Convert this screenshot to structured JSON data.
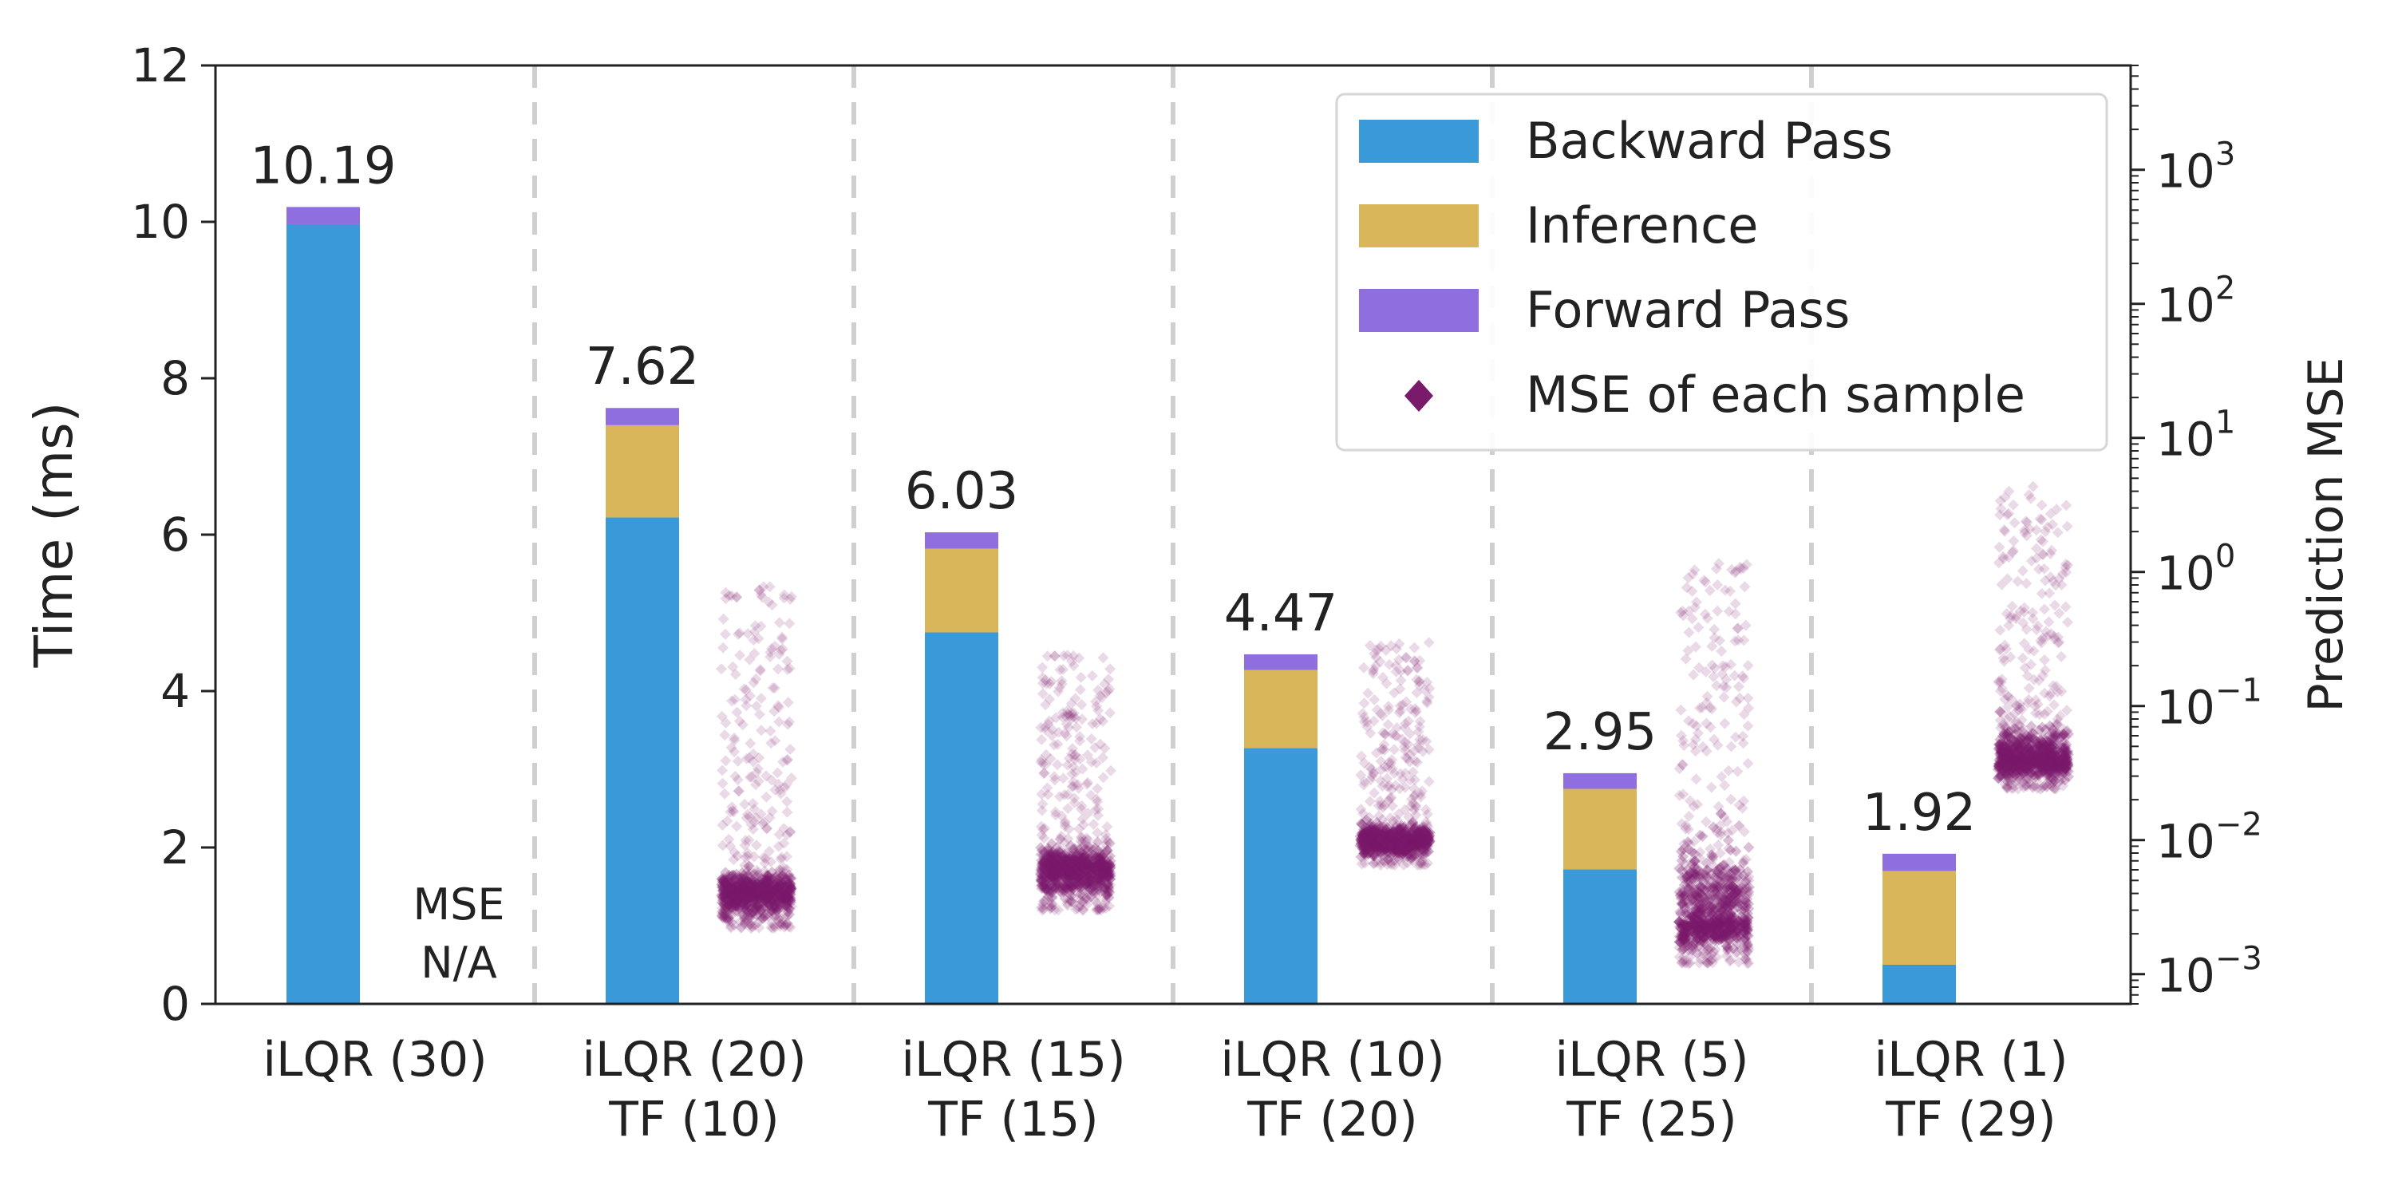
{
  "chart_data": {
    "type": "bar",
    "subtype": "stacked-bar-with-scatter-secondary-axis",
    "categories": [
      [
        "iLQR (30)"
      ],
      [
        "iLQR (20)",
        "TF (10)"
      ],
      [
        "iLQR (15)",
        "TF (15)"
      ],
      [
        "iLQR (10)",
        "TF (20)"
      ],
      [
        "iLQR (5)",
        "TF (25)"
      ],
      [
        "iLQR (1)",
        "TF (29)"
      ]
    ],
    "ylabel": "Time (ms)",
    "ylim": [
      0,
      12
    ],
    "yticks": [
      "0",
      "2",
      "4",
      "6",
      "8",
      "10",
      "12"
    ],
    "y2label": "Prediction MSE",
    "y2scale": "log",
    "y2lim": [
      0.0006,
      6000
    ],
    "y2ticks": [
      {
        "base": "10",
        "exp": "−3",
        "value": 0.001
      },
      {
        "base": "10",
        "exp": "−2",
        "value": 0.01
      },
      {
        "base": "10",
        "exp": "−1",
        "value": 0.1
      },
      {
        "base": "10",
        "exp": "0",
        "value": 1
      },
      {
        "base": "10",
        "exp": "1",
        "value": 10
      },
      {
        "base": "10",
        "exp": "2",
        "value": 100
      },
      {
        "base": "10",
        "exp": "3",
        "value": 1000
      }
    ],
    "series": [
      {
        "name": "Backward Pass",
        "color": "#3a9ad9",
        "values": [
          9.97,
          6.22,
          4.75,
          3.27,
          1.72,
          0.5
        ]
      },
      {
        "name": "Inference",
        "color": "#d9b65a",
        "values": [
          0,
          1.18,
          1.07,
          1.0,
          1.03,
          1.2
        ]
      },
      {
        "name": "Forward Pass",
        "color": "#8f6fe0",
        "values": [
          0.22,
          0.22,
          0.21,
          0.2,
          0.2,
          0.22
        ]
      }
    ],
    "totals": [
      "10.19",
      "7.62",
      "6.03",
      "4.47",
      "2.95",
      "1.92"
    ],
    "scatter": {
      "name": "MSE of each sample",
      "color": "#7a1a6b",
      "marker": "diamond",
      "groups": [
        null,
        {
          "center": 0.004,
          "core_low": 0.0022,
          "core_high": 0.007,
          "min": 0.0015,
          "max": 0.8
        },
        {
          "center": 0.006,
          "core_low": 0.003,
          "core_high": 0.011,
          "min": 0.0018,
          "max": 0.25
        },
        {
          "center": 0.01,
          "core_low": 0.0065,
          "core_high": 0.015,
          "min": 0.006,
          "max": 0.3
        },
        {
          "center": 0.0025,
          "core_low": 0.0012,
          "core_high": 0.02,
          "min": 0.0008,
          "max": 1.2
        },
        {
          "center": 0.04,
          "core_low": 0.024,
          "core_high": 0.09,
          "min": 0.02,
          "max": 4.5
        }
      ]
    },
    "annotation": {
      "line1": "MSE",
      "line2": "N/A"
    },
    "legend": {
      "position": "top-right"
    }
  }
}
